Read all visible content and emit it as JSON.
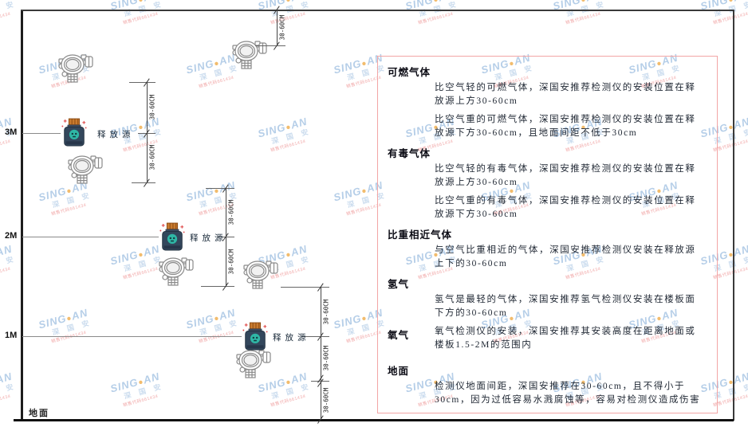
{
  "diagram": {
    "axis_labels": [
      "3M",
      "2M",
      "1M"
    ],
    "ground_label": "地面",
    "source_label": "释放源",
    "dim_label": "30-60CM"
  },
  "panel": {
    "border_color": "#f2a5a5",
    "sections": [
      {
        "heading": "可燃气体",
        "paragraphs": [
          "比空气轻的可燃气体，深国安推荐检测仪的安装位置在释放源上方30-60cm",
          "比空气重的可燃气体，深国安推荐检测仪的安装位置在释放源下方30-60cm，且地面间距不低于30cm"
        ]
      },
      {
        "heading": "有毒气体",
        "paragraphs": [
          "比空气轻的有毒气体，深国安推荐检测仪的安装位置在释放源上方30-60cm",
          "比空气重的有毒气体，深国安推荐检测仪的安装位置在释放源下方30-60cm"
        ]
      },
      {
        "heading": "比重相近气体",
        "paragraphs": [
          "与空气比重相近的气体，深国安推荐检测仪安装在释放源上下的30-60cm"
        ]
      },
      {
        "heading": "氢气",
        "paragraphs": [
          "氢气是最轻的气体，深国安推荐氢气检测仪安装在楼板面下方的30-60cm"
        ]
      },
      {
        "heading": "氧气",
        "paragraphs": [
          "氧气检测仪的安装，深国安推荐其安装高度在距离地面或楼板1.5-2M的范围内"
        ]
      },
      {
        "heading": "地面",
        "paragraphs": [
          "检测仪地面间距，深国安推荐在30-60cm，且不得小于30cm，因为过低容易水溅腐蚀等，容易对检测仪造成伤害"
        ]
      }
    ]
  },
  "watermark": {
    "brand_left": "SING",
    "dot": "●",
    "brand_right": "AN",
    "name": "深 国 安",
    "code": "销售代码661434",
    "brand_color": "#a9c6e4",
    "code_color": "#ef9a9a"
  },
  "icons": {
    "detector": "gas-detector-icon",
    "source": "release-source-icon"
  },
  "colors": {
    "panel_border": "#f2a5a5",
    "source_body": "#33475c",
    "source_cap": "#c87a2e",
    "source_badge": "#2fb7a6",
    "hazard_mark": "#e05050",
    "detector_line": "#8a8a8a"
  }
}
